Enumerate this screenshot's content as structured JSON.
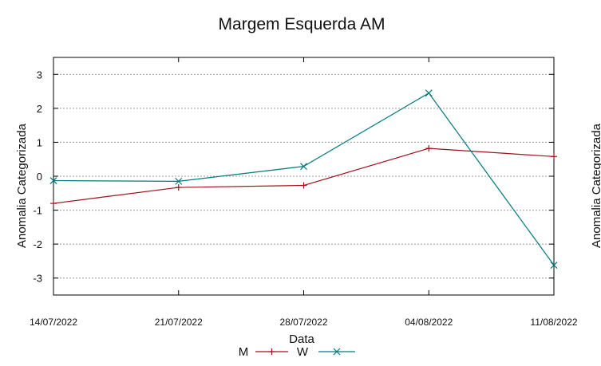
{
  "chart_data": {
    "type": "line",
    "title": "Margem Esquerda AM",
    "xlabel": "Data",
    "ylabel": "Anomalia Categorizada",
    "x": [
      "14/07/2022",
      "21/07/2022",
      "28/07/2022",
      "04/08/2022",
      "11/08/2022"
    ],
    "x_tick_labels": [
      "14/07/2022",
      "21/07/2022",
      "28/07/2022",
      "04/08/2022",
      "11/08/2022"
    ],
    "ylim": [
      -3.5,
      3.5
    ],
    "yticks": [
      -3,
      -2,
      -1,
      0,
      1,
      2,
      3
    ],
    "y_tick_labels": [
      "-3",
      "-2",
      "-1",
      "0",
      "1",
      "2",
      "3"
    ],
    "grid": true,
    "legend_position": "bottom-center",
    "series": [
      {
        "name": "M",
        "color": "#a0101a",
        "marker": "plus",
        "values": [
          -0.8,
          -0.33,
          -0.27,
          0.82,
          0.58
        ]
      },
      {
        "name": "W",
        "color": "#007a7f",
        "marker": "cross",
        "values": [
          -0.13,
          -0.15,
          0.29,
          2.45,
          -2.62
        ]
      }
    ],
    "clipped_label": "Anomalia Categorizada"
  }
}
